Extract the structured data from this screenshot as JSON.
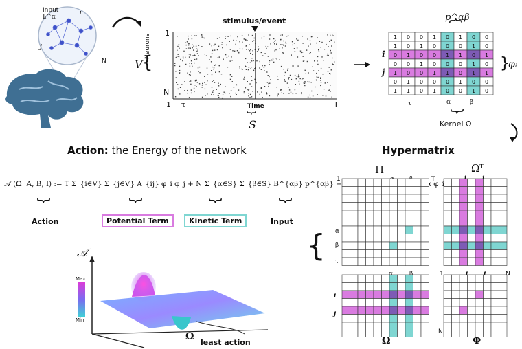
{
  "brain_panel": {
    "input_label": "Input",
    "input_symbol": "Iᵢ^α",
    "node_i": "i",
    "node_j": "j",
    "node_N": "N"
  },
  "raster": {
    "title": "stimulus/event",
    "y_top": "1",
    "y_bottom": "N",
    "y_axis": "Neurons",
    "set_symbol": "V",
    "x_start": "1",
    "x_tau": "τ",
    "x_axis": "Time",
    "x_end": "T",
    "set_S": "S"
  },
  "matrix": {
    "p_label": "p^αβ",
    "row_i": "i",
    "row_j": "j",
    "phi_label": "φᵢ",
    "tau_label": "τ",
    "alpha": "α",
    "beta": "β",
    "kernel": "Kernel Ω",
    "rows": [
      [
        "1",
        "0",
        "0",
        "1",
        "0",
        "1",
        "0",
        "0"
      ],
      [
        "1",
        "0",
        "1",
        "0",
        "0",
        "0",
        "1",
        "0"
      ],
      [
        "0",
        "1",
        "0",
        "0",
        "1",
        "1",
        "0",
        "1"
      ],
      [
        "0",
        "0",
        "1",
        "0",
        "0",
        "0",
        "1",
        "0"
      ],
      [
        "1",
        "0",
        "0",
        "1",
        "1",
        "0",
        "1",
        "1"
      ],
      [
        "0",
        "1",
        "0",
        "0",
        "0",
        "1",
        "0",
        "0"
      ],
      [
        "1",
        "1",
        "0",
        "1",
        "0",
        "0",
        "1",
        "0"
      ]
    ]
  },
  "action": {
    "heading_bold": "Action:",
    "heading_rest": " the Energy of the network",
    "formula": "𝒜 (Ω| A, B, I) := T Σ_{i∈V} Σ_{j∈V} A_{ij} φ_i φ_j + N Σ_{α∈S} Σ_{β∈S} B^{αβ} p^{αβ} + Σ_{i∈V} Σ_{α∈S} I_i^α φ_i^α",
    "label_action": "Action",
    "label_potential": "Potential Term",
    "label_kinetic": "Kinetic Term",
    "label_input": "Input"
  },
  "landscape": {
    "axis_label": "𝒜",
    "colorbar_max": "Max",
    "colorbar_min": "Min",
    "omega": "Ω",
    "least_action": "least action"
  },
  "hypermatrix": {
    "title": "Hypermatrix",
    "pi_label": "Π",
    "omega_t_label": "Ωᵀ",
    "omega_label": "Ω",
    "phi_label": "Φ",
    "one": "1",
    "T": "T",
    "N": "N",
    "alpha": "α",
    "beta": "β",
    "tau": "τ",
    "i": "i",
    "j": "j"
  },
  "colors": {
    "pink": "#d97be0",
    "teal": "#7fd6d2",
    "purple": "#7d5bb5",
    "brain": "#3f6f93"
  }
}
